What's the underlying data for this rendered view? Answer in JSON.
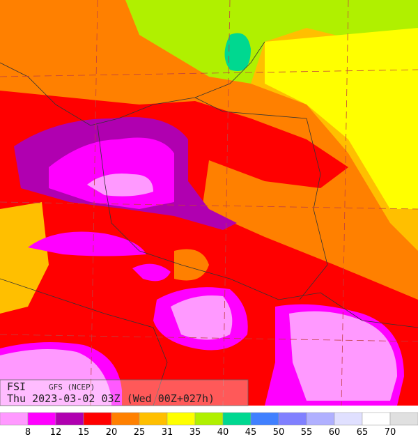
{
  "header": {
    "index": "FSI",
    "model": "GFS (NCEP)",
    "valid": "Thu 2023-03-02 03Z (Wed 00Z+027h)"
  },
  "legend": {
    "labels": [
      8,
      12,
      15,
      20,
      25,
      31,
      35,
      40,
      45,
      50,
      55,
      60,
      65,
      70
    ],
    "colors": [
      "#ff99ff",
      "#ff00ff",
      "#b000b0",
      "#ff0000",
      "#ff8000",
      "#ffbf00",
      "#ffff00",
      "#b0f000",
      "#00d890",
      "#4080ff",
      "#8080ff",
      "#b0b0ff",
      "#e0e0ff",
      "#ffffff",
      "#e0e0e0"
    ]
  }
}
